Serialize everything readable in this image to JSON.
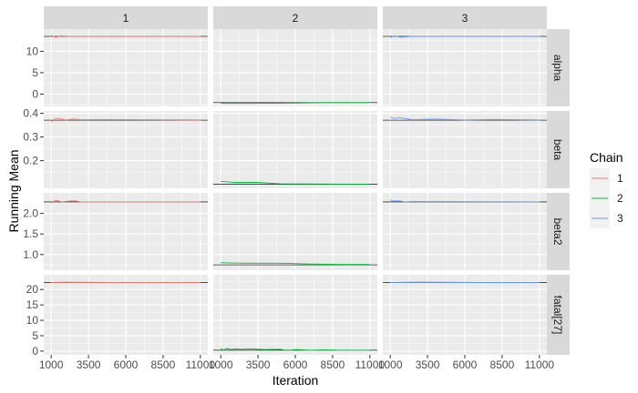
{
  "chart_data": {
    "type": "line",
    "facet_cols": [
      "1",
      "2",
      "3"
    ],
    "facet_rows": [
      "alpha",
      "beta",
      "beta2",
      "fatal[27]"
    ],
    "xlabel": "Iteration",
    "ylabel": "Running Mean",
    "xlim": [
      500,
      11500
    ],
    "xticks": [
      1000,
      3500,
      6000,
      8500,
      11000
    ],
    "xtick_labels": [
      "1000",
      "3500",
      "6000",
      "8500",
      "11000"
    ],
    "grid": true,
    "legend": {
      "title": "Chain",
      "position": "right",
      "entries": [
        {
          "label": "1",
          "color": "#F8766D"
        },
        {
          "label": "2",
          "color": "#00BA38"
        },
        {
          "label": "3",
          "color": "#619CFF"
        }
      ]
    },
    "rows": [
      {
        "name": "alpha",
        "ylim": [
          -2.9,
          15.2
        ],
        "yticks": [
          0,
          5,
          10
        ],
        "ytick_labels": [
          "0",
          "5",
          "10"
        ],
        "reference": [
          13.5,
          -2.0,
          13.5
        ],
        "running_mean": [
          {
            "x": [
              1000,
              1300,
              1600,
              2200,
              11000
            ],
            "y": [
              13.7,
              13.3,
              13.6,
              13.5,
              13.5
            ]
          },
          {
            "x": [
              1000,
              3000,
              6000,
              8000,
              11000
            ],
            "y": [
              -2.2,
              -2.2,
              -2.1,
              -2.0,
              -2.0
            ]
          },
          {
            "x": [
              1000,
              1300,
              1700,
              2500,
              11000
            ],
            "y": [
              13.2,
              13.6,
              13.3,
              13.5,
              13.5
            ]
          }
        ]
      },
      {
        "name": "beta",
        "ylim": [
          0.083,
          0.41
        ],
        "yticks": [
          0.2,
          0.3,
          0.4
        ],
        "ytick_labels": [
          "0.2",
          "0.3",
          "0.4"
        ],
        "reference": [
          0.371,
          0.1,
          0.371
        ],
        "running_mean": [
          {
            "x": [
              1000,
              1200,
              1500,
              2000,
              2500,
              3000,
              5000,
              11000
            ],
            "y": [
              0.362,
              0.375,
              0.379,
              0.372,
              0.376,
              0.373,
              0.374,
              0.372
            ]
          },
          {
            "x": [
              1000,
              2000,
              3500,
              5000,
              8000,
              11000
            ],
            "y": [
              0.112,
              0.108,
              0.108,
              0.102,
              0.101,
              0.1
            ]
          },
          {
            "x": [
              1000,
              1300,
              1600,
              2500,
              4000,
              6000,
              8000,
              11000
            ],
            "y": [
              0.384,
              0.378,
              0.382,
              0.373,
              0.376,
              0.372,
              0.374,
              0.372
            ]
          }
        ]
      },
      {
        "name": "beta2",
        "ylim": [
          0.62,
          2.5
        ],
        "yticks": [
          1.0,
          1.5,
          2.0
        ],
        "ytick_labels": [
          "1.0",
          "1.5",
          "2.0"
        ],
        "reference": [
          2.28,
          0.75,
          2.28
        ],
        "running_mean": [
          {
            "x": [
              1000,
              1300,
              1700,
              2500,
              3000,
              11000
            ],
            "y": [
              2.25,
              2.32,
              2.28,
              2.31,
              2.28,
              2.28
            ]
          },
          {
            "x": [
              1000,
              3000,
              5000,
              7000,
              9000,
              11000
            ],
            "y": [
              0.8,
              0.79,
              0.79,
              0.77,
              0.76,
              0.76
            ]
          },
          {
            "x": [
              1000,
              1200,
              1500,
              2000,
              2500,
              11000
            ],
            "y": [
              2.33,
              2.3,
              2.31,
              2.28,
              2.29,
              2.28
            ]
          }
        ]
      },
      {
        "name": "fatal[27]",
        "ylim": [
          -1.2,
          24.8
        ],
        "yticks": [
          0,
          5,
          10,
          15,
          20
        ],
        "ytick_labels": [
          "0",
          "5",
          "10",
          "15",
          "20"
        ],
        "reference": [
          22.3,
          0.3,
          22.3
        ],
        "running_mean": [
          {
            "x": [
              1000,
              2000,
              5000,
              11000
            ],
            "y": [
              22.3,
              22.4,
              22.3,
              22.3
            ]
          },
          {
            "x": [
              1000,
              1200,
              1400,
              1700,
              2000,
              2500,
              3000,
              4000,
              5000,
              5500,
              6000,
              7000,
              8000,
              9000,
              11000
            ],
            "y": [
              0.9,
              0.3,
              0.9,
              0.5,
              0.7,
              0.6,
              0.7,
              0.5,
              0.6,
              0.2,
              0.5,
              0.3,
              0.4,
              0.3,
              0.3
            ]
          },
          {
            "x": [
              1000,
              3000,
              7000,
              11000
            ],
            "y": [
              22.3,
              22.4,
              22.3,
              22.3
            ]
          }
        ]
      }
    ]
  }
}
